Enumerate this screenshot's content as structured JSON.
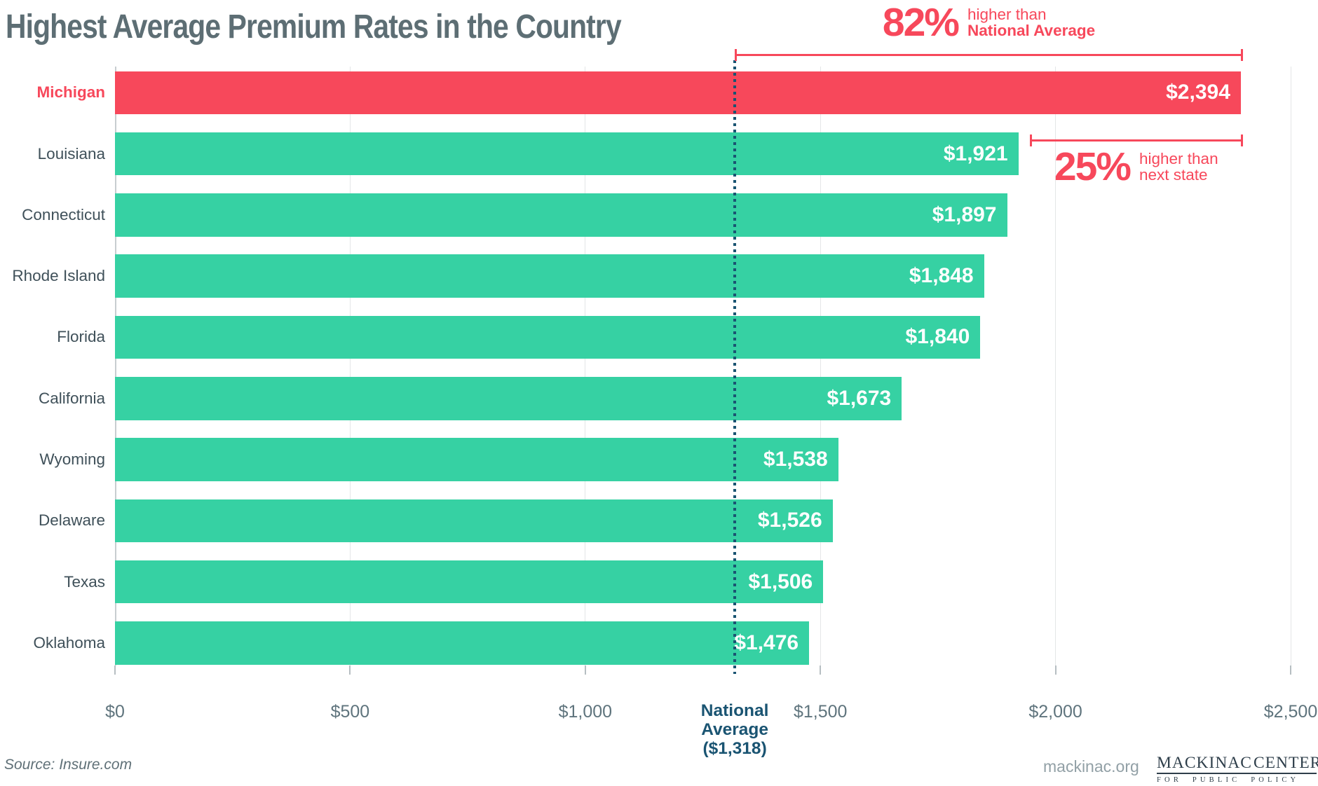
{
  "header": {
    "title": "Highest Average Premium Rates in the Country"
  },
  "chart_data": {
    "type": "bar",
    "orientation": "horizontal",
    "title": "Highest Average Premium Rates in the Country",
    "categories": [
      "Michigan",
      "Louisiana",
      "Connecticut",
      "Rhode Island",
      "Florida",
      "California",
      "Wyoming",
      "Delaware",
      "Texas",
      "Oklahoma"
    ],
    "values": [
      2394,
      1921,
      1897,
      1848,
      1840,
      1673,
      1538,
      1526,
      1506,
      1476
    ],
    "value_labels": [
      "$2,394",
      "$1,921",
      "$1,897",
      "$1,848",
      "$1,840",
      "$1,673",
      "$1,538",
      "$1,526",
      "$1,506",
      "$1,476"
    ],
    "xlim": [
      0,
      2500
    ],
    "x_ticks": [
      0,
      500,
      1000,
      1500,
      2000,
      2500
    ],
    "x_tick_labels": [
      "$0",
      "$500",
      "$1,000",
      "$1,500",
      "$2,000",
      "$2,500"
    ],
    "highlight_index": 0,
    "grid": true,
    "legend": false,
    "reference_line": {
      "value": 1318,
      "label_lines": [
        "National",
        "Average",
        "($1,318)"
      ]
    },
    "annotations": [
      {
        "big": "82%",
        "line1": "higher than",
        "line2": "National Average",
        "line2_bold": true,
        "from_value": 1318,
        "to_value": 2394,
        "position": "above"
      },
      {
        "big": "25%",
        "line1": "higher than",
        "line2": "next state",
        "line2_bold": false,
        "from_value": 1921,
        "to_value": 2394,
        "position": "below"
      }
    ],
    "colors": {
      "bar": "#36d1a3",
      "highlight": "#f7485b",
      "annotation": "#f7485b",
      "reference": "#1a5472",
      "grid": "#e4e6e7",
      "axis_text": "#5f747d",
      "label_text": "#3f5059",
      "title_text": "#5d6e74"
    }
  },
  "footer": {
    "source": "Source: Insure.com",
    "site": "mackinac.org",
    "logo": {
      "word1": "MACKINAC",
      "word2": "CENTER",
      "tagline": "FOR PUBLIC POLICY"
    }
  }
}
